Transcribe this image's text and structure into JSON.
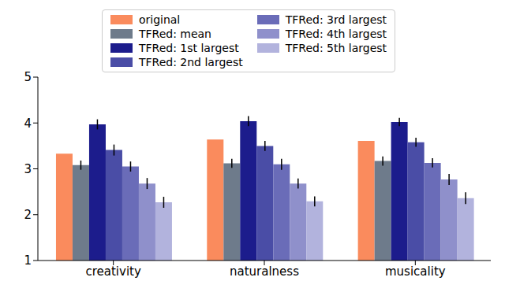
{
  "chart_data": {
    "type": "bar",
    "categories": [
      "creativity",
      "naturalness",
      "musicality"
    ],
    "ylim": [
      1,
      5
    ],
    "yticks": [
      1,
      2,
      3,
      4,
      5
    ],
    "grid": false,
    "legend": "top",
    "series": [
      {
        "name": "original",
        "color": "#fa8b5d",
        "values": [
          3.33,
          3.64,
          3.61
        ]
      },
      {
        "name": "TFRed: mean",
        "color": "#6e7b8b",
        "values": [
          3.08,
          3.12,
          3.17
        ],
        "errors": [
          0.1,
          0.1,
          0.1
        ]
      },
      {
        "name": "TFRed: 1st largest",
        "color": "#1c1c8c",
        "values": [
          3.97,
          4.04,
          4.02
        ],
        "errors": [
          0.11,
          0.11,
          0.09
        ]
      },
      {
        "name": "TFRed: 2nd largest",
        "color": "#4a4da6",
        "values": [
          3.41,
          3.5,
          3.58
        ],
        "errors": [
          0.12,
          0.11,
          0.1
        ]
      },
      {
        "name": "TFRed: 3rd largest",
        "color": "#6a6cb8",
        "values": [
          3.05,
          3.1,
          3.13
        ],
        "errors": [
          0.11,
          0.12,
          0.1
        ]
      },
      {
        "name": "TFRed: 4th largest",
        "color": "#8f90cb",
        "values": [
          2.68,
          2.68,
          2.77
        ],
        "errors": [
          0.12,
          0.11,
          0.12
        ]
      },
      {
        "name": "TFRed: 5th largest",
        "color": "#b2b3dd",
        "values": [
          2.27,
          2.29,
          2.36
        ],
        "errors": [
          0.12,
          0.11,
          0.13
        ]
      }
    ]
  }
}
